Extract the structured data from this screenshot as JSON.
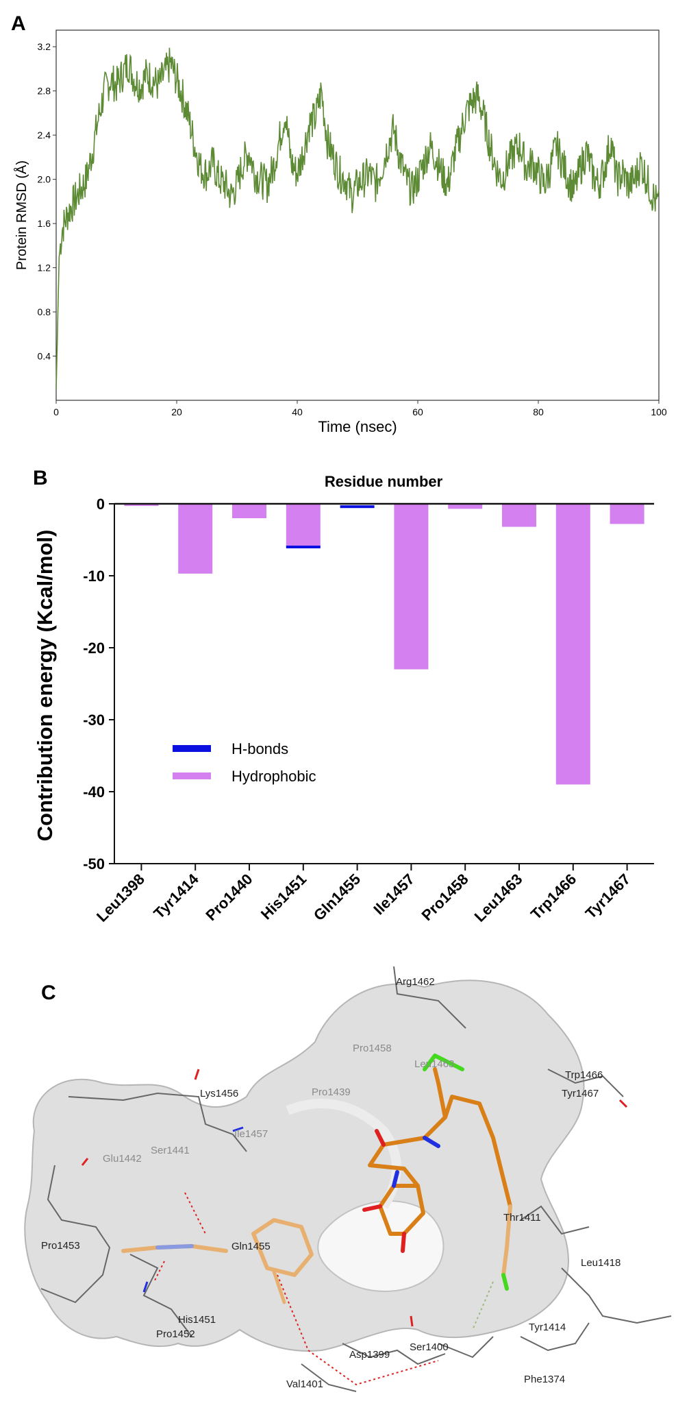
{
  "panels": {
    "a": "A",
    "b": "B",
    "c": "C"
  },
  "chart_data": [
    {
      "type": "line",
      "panel": "A",
      "xlabel": "Time (nsec)",
      "ylabel": "Protein RMSD (Å)",
      "xlim": [
        0,
        100
      ],
      "ylim": [
        0,
        3.35
      ],
      "xticks": [
        0,
        20,
        40,
        60,
        80,
        100
      ],
      "yticks": [
        0.4,
        0.8,
        1.2,
        1.6,
        2.0,
        2.4,
        2.8,
        3.2
      ],
      "color": "#5d8a34",
      "series": [
        {
          "name": "RMSD",
          "x": [
            0,
            0.5,
            1,
            2,
            3,
            4,
            5,
            6,
            7,
            8,
            9,
            10,
            11,
            12,
            13,
            14,
            15,
            16,
            17,
            18,
            19,
            20,
            21,
            22,
            23,
            24,
            25,
            26,
            27,
            28,
            29,
            30,
            31,
            32,
            33,
            34,
            35,
            36,
            37,
            38,
            39,
            40,
            41,
            42,
            43,
            44,
            45,
            46,
            47,
            48,
            49,
            50,
            51,
            52,
            53,
            54,
            55,
            56,
            57,
            58,
            59,
            60,
            61,
            62,
            63,
            64,
            65,
            66,
            67,
            68,
            69,
            70,
            71,
            72,
            73,
            74,
            75,
            76,
            77,
            78,
            79,
            80,
            81,
            82,
            83,
            84,
            85,
            86,
            87,
            88,
            89,
            90,
            91,
            92,
            93,
            94,
            95,
            96,
            97,
            98,
            99,
            100
          ],
          "values": [
            0.1,
            1.3,
            1.55,
            1.7,
            1.8,
            1.9,
            2.0,
            2.25,
            2.55,
            2.8,
            2.9,
            2.85,
            2.95,
            3.05,
            2.9,
            2.85,
            2.95,
            2.9,
            2.85,
            2.95,
            3.05,
            2.9,
            2.75,
            2.55,
            2.3,
            2.1,
            2.05,
            2.15,
            2.0,
            1.95,
            1.85,
            1.95,
            2.15,
            2.25,
            2.05,
            2.0,
            1.95,
            2.1,
            2.35,
            2.6,
            2.15,
            2.05,
            2.25,
            2.5,
            2.55,
            2.8,
            2.35,
            2.2,
            2.05,
            2.0,
            1.85,
            1.95,
            2.0,
            2.05,
            1.95,
            2.1,
            2.3,
            2.45,
            2.2,
            2.0,
            1.9,
            2.0,
            2.15,
            2.3,
            2.2,
            2.05,
            1.95,
            2.2,
            2.4,
            2.6,
            2.7,
            2.75,
            2.55,
            2.3,
            2.1,
            2.0,
            2.15,
            2.25,
            2.3,
            2.1,
            2.15,
            2.05,
            1.95,
            2.1,
            2.3,
            2.15,
            2.0,
            1.9,
            2.1,
            2.25,
            2.05,
            1.95,
            2.1,
            2.35,
            2.0,
            2.05,
            1.95,
            2.0,
            2.15,
            2.0,
            1.85,
            1.75
          ]
        }
      ]
    },
    {
      "type": "bar",
      "panel": "B",
      "title": "Residue number",
      "ylabel": "Contribution energy (Kcal/mol)",
      "ylim": [
        -50,
        0
      ],
      "yticks": [
        0,
        -10,
        -20,
        -30,
        -40,
        -50
      ],
      "categories": [
        "Leu1398",
        "Tyr1414",
        "Pro1440",
        "His1451",
        "Gln1455",
        "Ile1457",
        "Pro1458",
        "Leu1463",
        "Trp1466",
        "Tyr1467"
      ],
      "series": [
        {
          "name": "Hydrophobic",
          "color": "#d580f0",
          "values": [
            -0.3,
            -9.7,
            -2.0,
            -6.0,
            0,
            -23.0,
            -0.7,
            -3.2,
            -39.0,
            -2.8
          ]
        },
        {
          "name": "H-bonds",
          "color": "#0a10e0",
          "values": [
            0,
            0,
            0,
            -0.3,
            -0.4,
            0,
            0,
            0,
            0,
            0
          ]
        }
      ],
      "legend": [
        "H-bonds",
        "Hydrophobic"
      ],
      "legend_position": "lower-left"
    }
  ],
  "panel_c": {
    "residue_labels": [
      "Arg1462",
      "Pro1458",
      "Leu1463",
      "Trp1466",
      "Tyr1467",
      "Lys1456",
      "Ile1457",
      "Pro1439",
      "Glu1442",
      "Ser1441",
      "Pro1453",
      "Gln1455",
      "Thr1411",
      "Leu1418",
      "His1451",
      "Pro1452",
      "Tyr1414",
      "Asp1399",
      "Ser1400",
      "Val1401",
      "Phe1374"
    ]
  }
}
